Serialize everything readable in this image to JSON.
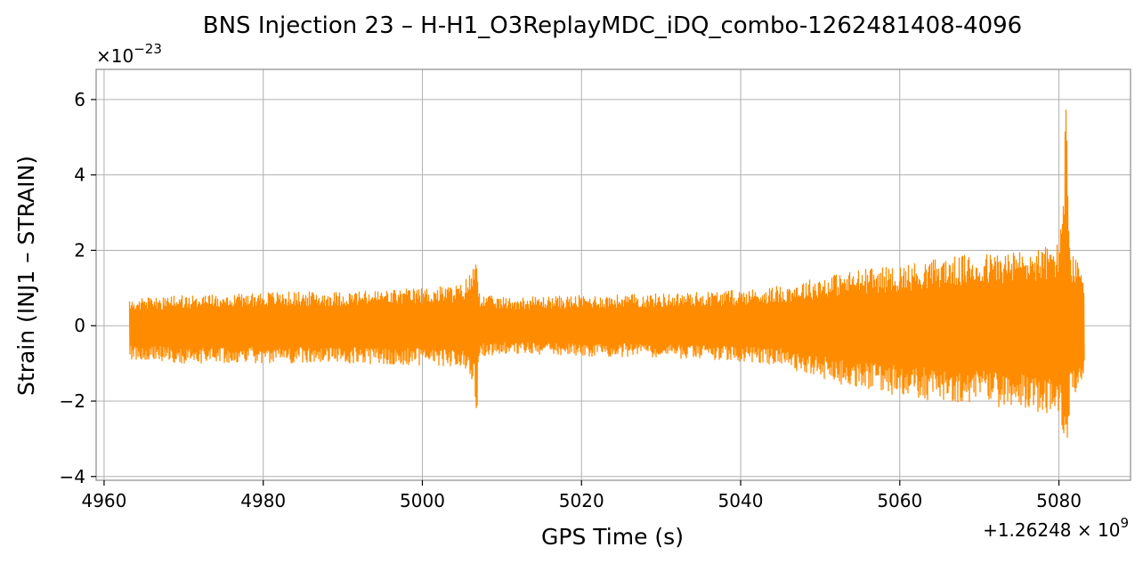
{
  "chart_data": {
    "type": "line",
    "title": "BNS Injection 23 – H-H1_O3ReplayMDC_iDQ_combo-1262481408-4096",
    "xlabel": "GPS Time (s)",
    "ylabel": "Strain (INJ1 – STRAIN)",
    "x_offset_label": "+1.26248 × 10^9",
    "x_offset_base": "+1.26248 × 10",
    "x_offset_exp": "9",
    "y_scale_label": "×10^−23",
    "y_scale_base": "×10",
    "y_scale_exp": "−23",
    "xlim": [
      4959,
      5089
    ],
    "ylim": [
      -4.1,
      6.8
    ],
    "xticks": [
      4960,
      4980,
      5000,
      5020,
      5040,
      5060,
      5080
    ],
    "xtick_labels": [
      "4960",
      "4980",
      "5000",
      "5020",
      "5040",
      "5060",
      "5080"
    ],
    "yticks": [
      -4,
      -2,
      0,
      2,
      4,
      6
    ],
    "ytick_labels": [
      "−4",
      "−2",
      "0",
      "2",
      "4",
      "6"
    ],
    "grid": true,
    "series": [
      {
        "color": "#ff8c00",
        "x_start": 4963.2,
        "x_end": 5083.2,
        "envelope": {
          "x": [
            4963.2,
            4970,
            4980,
            4990,
            5000,
            5005,
            5006.5,
            5006.8,
            5007.0,
            5007.3,
            5008,
            5010,
            5020,
            5030,
            5040,
            5045,
            5050,
            5055,
            5060,
            5065,
            5070,
            5075,
            5078,
            5080,
            5081.0,
            5081.2,
            5081.5,
            5082,
            5083.2
          ],
          "upper": [
            0.7,
            0.8,
            0.9,
            0.9,
            1.0,
            1.1,
            1.6,
            2.1,
            1.5,
            0.8,
            0.8,
            0.75,
            0.8,
            0.85,
            0.95,
            1.05,
            1.3,
            1.5,
            1.6,
            1.8,
            1.9,
            2.0,
            2.1,
            2.2,
            6.3,
            3.5,
            2.0,
            1.8,
            1.5
          ],
          "lower": [
            -0.9,
            -1.0,
            -1.0,
            -1.0,
            -1.05,
            -1.1,
            -1.5,
            -3.3,
            -1.4,
            -0.85,
            -0.8,
            -0.75,
            -0.8,
            -0.85,
            -0.95,
            -1.05,
            -1.4,
            -1.7,
            -1.9,
            -2.0,
            -2.1,
            -2.2,
            -2.3,
            -2.4,
            -3.7,
            -2.9,
            -2.0,
            -1.8,
            -1.3
          ]
        }
      }
    ]
  }
}
